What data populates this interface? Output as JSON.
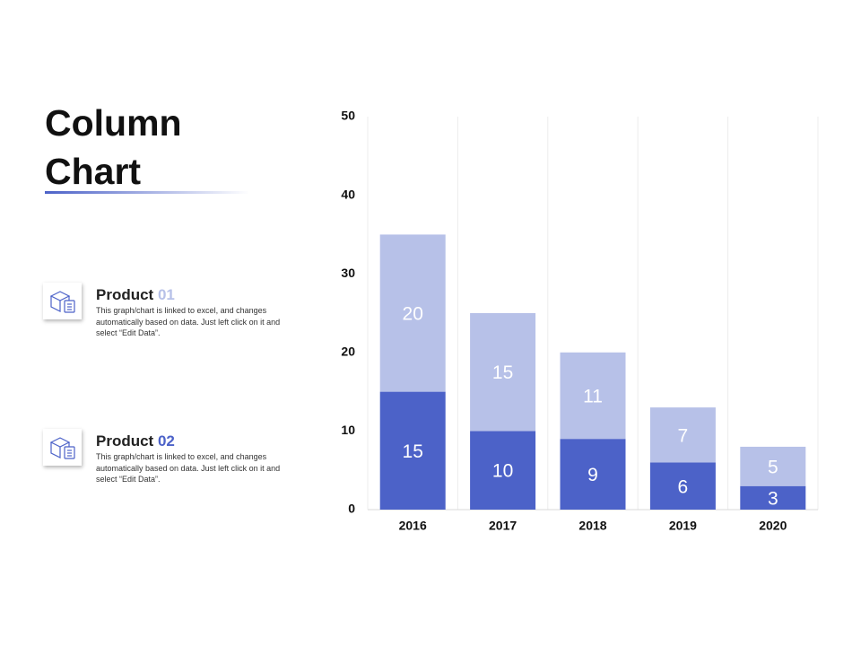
{
  "chart_data": {
    "type": "stacked-bar",
    "title": "Column Chart",
    "categories": [
      "2016",
      "2017",
      "2018",
      "2019",
      "2020"
    ],
    "series": [
      {
        "name": "Product 01",
        "color": "#b7c1e8",
        "values": [
          20,
          15,
          11,
          7,
          5
        ],
        "description": "This graph/chart is linked to excel, and changes automatically based on data. Just left click on it and select “Edit Data”."
      },
      {
        "name": "Product 02",
        "color": "#4c62c8",
        "values": [
          15,
          10,
          9,
          6,
          3
        ],
        "description": "This graph/chart is linked to excel, and changes automatically based on data. Just left click on it and select “Edit Data”."
      }
    ],
    "ylim": [
      0,
      50
    ],
    "yticks": [
      0,
      10,
      20,
      30,
      40,
      50
    ]
  }
}
